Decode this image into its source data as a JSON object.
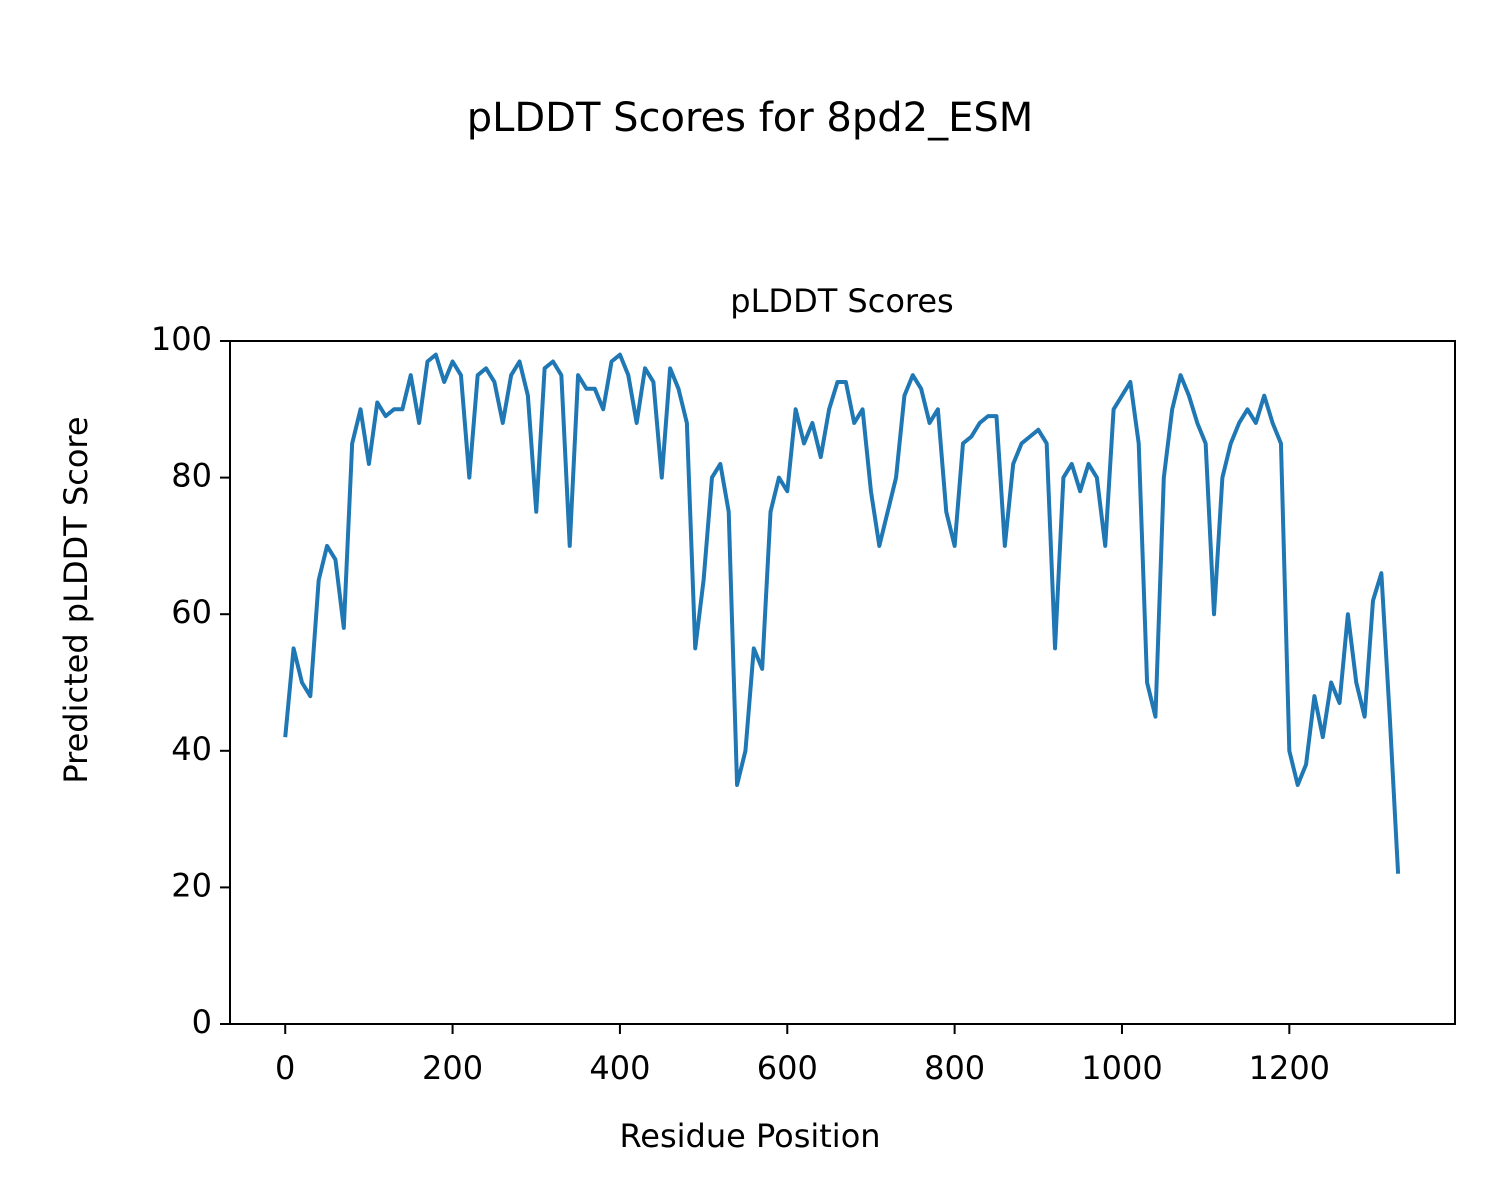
{
  "chart_data": {
    "type": "line",
    "suptitle": "pLDDT Scores for 8pd2_ESM",
    "title": "pLDDT Scores",
    "xlabel": "Residue Position",
    "ylabel": "Predicted pLDDT Score",
    "x": [
      0,
      10,
      20,
      30,
      40,
      50,
      60,
      70,
      80,
      90,
      100,
      110,
      120,
      130,
      140,
      150,
      160,
      170,
      180,
      190,
      200,
      210,
      220,
      230,
      240,
      250,
      260,
      270,
      280,
      290,
      300,
      310,
      320,
      330,
      340,
      350,
      360,
      370,
      380,
      390,
      400,
      410,
      420,
      430,
      440,
      450,
      460,
      470,
      480,
      490,
      500,
      510,
      520,
      530,
      540,
      550,
      560,
      570,
      580,
      590,
      600,
      610,
      620,
      630,
      640,
      650,
      660,
      670,
      680,
      690,
      700,
      710,
      720,
      730,
      740,
      750,
      760,
      770,
      780,
      790,
      800,
      810,
      820,
      830,
      840,
      850,
      860,
      870,
      880,
      890,
      900,
      910,
      920,
      930,
      940,
      950,
      960,
      970,
      980,
      990,
      1000,
      1010,
      1020,
      1030,
      1040,
      1050,
      1060,
      1070,
      1080,
      1090,
      1100,
      1110,
      1120,
      1130,
      1140,
      1150,
      1160,
      1170,
      1180,
      1190,
      1200,
      1210,
      1220,
      1230,
      1240,
      1250,
      1260,
      1270,
      1280,
      1290,
      1300,
      1310,
      1320,
      1330
    ],
    "series": [
      {
        "name": "pLDDT",
        "color": "#1f77b4",
        "values": [
          42,
          55,
          50,
          48,
          65,
          70,
          68,
          58,
          85,
          90,
          82,
          91,
          89,
          90,
          90,
          95,
          88,
          97,
          98,
          94,
          97,
          95,
          80,
          95,
          96,
          94,
          88,
          95,
          97,
          92,
          75,
          96,
          97,
          95,
          70,
          95,
          93,
          93,
          90,
          97,
          98,
          95,
          88,
          96,
          94,
          80,
          96,
          93,
          88,
          55,
          65,
          80,
          82,
          75,
          35,
          40,
          55,
          52,
          75,
          80,
          78,
          90,
          85,
          88,
          83,
          90,
          94,
          94,
          88,
          90,
          78,
          70,
          75,
          80,
          92,
          95,
          93,
          88,
          90,
          75,
          70,
          85,
          86,
          88,
          89,
          89,
          70,
          82,
          85,
          86,
          87,
          85,
          55,
          80,
          82,
          78,
          82,
          80,
          70,
          90,
          92,
          94,
          85,
          50,
          45,
          80,
          90,
          95,
          92,
          88,
          85,
          60,
          80,
          85,
          88,
          90,
          88,
          92,
          88,
          85,
          40,
          35,
          38,
          48,
          42,
          50,
          47,
          60,
          50,
          45,
          62,
          66,
          45,
          22
        ]
      }
    ],
    "xlim": [
      -66,
      1398
    ],
    "ylim": [
      0,
      100
    ],
    "xticks": [
      0,
      200,
      400,
      600,
      800,
      1000,
      1200
    ],
    "yticks": [
      0,
      20,
      40,
      60,
      80,
      100
    ]
  }
}
